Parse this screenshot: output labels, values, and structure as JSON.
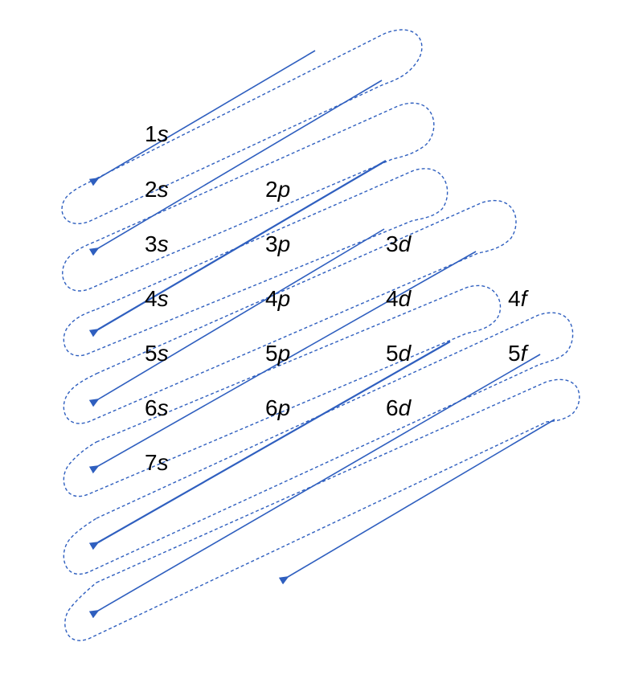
{
  "colors": {
    "arrow": "#2f5fbf",
    "dashed_outline": "#2f5fbf",
    "text": "#000000",
    "background": "#ffffff"
  },
  "orbitals": [
    {
      "id": "1s",
      "n": "1",
      "l": "s"
    },
    {
      "id": "2s",
      "n": "2",
      "l": "s"
    },
    {
      "id": "2p",
      "n": "2",
      "l": "p"
    },
    {
      "id": "3s",
      "n": "3",
      "l": "s"
    },
    {
      "id": "3p",
      "n": "3",
      "l": "p"
    },
    {
      "id": "3d",
      "n": "3",
      "l": "d"
    },
    {
      "id": "4s",
      "n": "4",
      "l": "s"
    },
    {
      "id": "4p",
      "n": "4",
      "l": "p"
    },
    {
      "id": "4d",
      "n": "4",
      "l": "d"
    },
    {
      "id": "4f",
      "n": "4",
      "l": "f"
    },
    {
      "id": "5s",
      "n": "5",
      "l": "s"
    },
    {
      "id": "5p",
      "n": "5",
      "l": "p"
    },
    {
      "id": "5d",
      "n": "5",
      "l": "d"
    },
    {
      "id": "5f",
      "n": "5",
      "l": "f"
    },
    {
      "id": "6s",
      "n": "6",
      "l": "s"
    },
    {
      "id": "6p",
      "n": "6",
      "l": "p"
    },
    {
      "id": "6d",
      "n": "6",
      "l": "d"
    },
    {
      "id": "7s",
      "n": "7",
      "l": "s"
    }
  ]
}
